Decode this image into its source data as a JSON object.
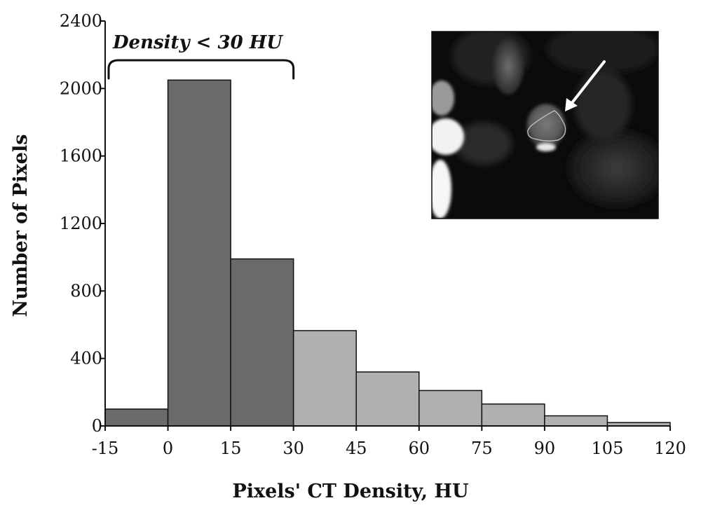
{
  "chart_data": {
    "type": "bar",
    "title": "",
    "xlabel": "Pixels' CT Density, HU",
    "ylabel": "Number of Pixels",
    "bin_edges": [
      -15,
      0,
      15,
      30,
      45,
      60,
      75,
      90,
      105,
      120
    ],
    "x_tick_labels": [
      "-15",
      "0",
      "15",
      "30",
      "45",
      "60",
      "75",
      "90",
      "105",
      "120"
    ],
    "y_tick_labels": [
      "0",
      "400",
      "800",
      "1200",
      "1600",
      "2000",
      "2400"
    ],
    "values": [
      100,
      2050,
      990,
      565,
      320,
      210,
      130,
      60,
      20
    ],
    "xlim": [
      -15,
      120
    ],
    "ylim": [
      0,
      2400
    ],
    "grid": false,
    "bar_colors": [
      "#6a6a6a",
      "#6a6a6a",
      "#6a6a6a",
      "#b0b0b0",
      "#b0b0b0",
      "#b0b0b0",
      "#b0b0b0",
      "#b0b0b0",
      "#b0b0b0"
    ],
    "annotation": {
      "text": "Density < 30 HU",
      "x_range": [
        -15,
        30
      ]
    },
    "inset": {
      "content": "CT image with white arrow pointing to outlined region"
    }
  }
}
